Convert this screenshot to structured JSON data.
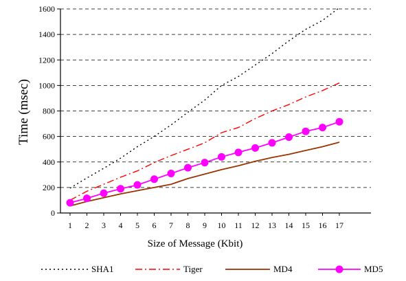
{
  "chart_data": {
    "type": "line",
    "title": "",
    "xlabel": "Size of Message (Kbit)",
    "ylabel": "Time (msec)",
    "x": [
      1,
      2,
      3,
      4,
      5,
      6,
      7,
      8,
      9,
      10,
      11,
      12,
      13,
      14,
      15,
      16,
      17
    ],
    "xlim": [
      1,
      17
    ],
    "ylim": [
      0,
      1600
    ],
    "yticks": [
      0,
      200,
      400,
      600,
      800,
      1000,
      1200,
      1400,
      1600
    ],
    "grid": "horizontal dashed",
    "legend_position": "bottom",
    "series": [
      {
        "name": "SHA1",
        "color": "#000000",
        "style": "dotted",
        "marker": "none",
        "values": [
          195,
          275,
          350,
          430,
          520,
          600,
          690,
          790,
          885,
          1000,
          1070,
          1160,
          1250,
          1350,
          1440,
          1510,
          1610
        ]
      },
      {
        "name": "Tiger",
        "color": "#ff0000",
        "style": "dash-dot",
        "marker": "none",
        "values": [
          100,
          170,
          225,
          280,
          330,
          395,
          450,
          500,
          550,
          630,
          670,
          740,
          800,
          850,
          910,
          960,
          1020
        ]
      },
      {
        "name": "MD4",
        "color": "#993300",
        "style": "solid",
        "marker": "none",
        "values": [
          55,
          90,
          120,
          150,
          175,
          200,
          225,
          270,
          305,
          340,
          370,
          405,
          435,
          460,
          490,
          520,
          555
        ]
      },
      {
        "name": "MD5",
        "color": "#ff00ff",
        "style": "solid",
        "marker": "circle",
        "values": [
          80,
          115,
          155,
          190,
          220,
          265,
          310,
          355,
          395,
          440,
          475,
          510,
          550,
          595,
          640,
          670,
          715
        ]
      }
    ]
  }
}
